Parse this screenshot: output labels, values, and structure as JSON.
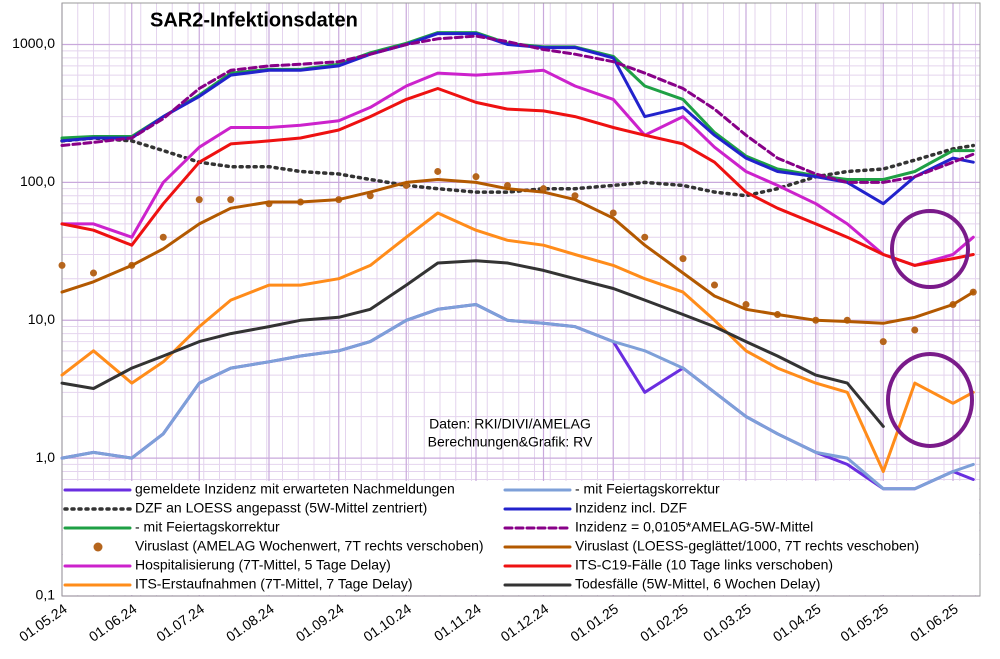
{
  "chart_data": {
    "type": "line",
    "title": "SAR2-Infektionsdaten",
    "annotations": [
      "Daten: RKI/DIVI/AMELAG",
      "Berechnungen&Grafik: RV"
    ],
    "log_scale": true,
    "grid": true,
    "ylim": [
      0.1,
      2000
    ],
    "yticks": [
      {
        "value": 0.1,
        "label": "0,1"
      },
      {
        "value": 1,
        "label": "1,0"
      },
      {
        "value": 10,
        "label": "10,0"
      },
      {
        "value": 100,
        "label": "100,0"
      },
      {
        "value": 1000,
        "label": "1000,0"
      }
    ],
    "xlim": [
      "2024-05-01",
      "2025-06-13"
    ],
    "xticks": [
      {
        "value": "2024-05-01",
        "label": "01.05.24"
      },
      {
        "value": "2024-06-01",
        "label": "01.06.24"
      },
      {
        "value": "2024-07-01",
        "label": "01.07.24"
      },
      {
        "value": "2024-08-01",
        "label": "01.08.24"
      },
      {
        "value": "2024-09-01",
        "label": "01.09.24"
      },
      {
        "value": "2024-10-01",
        "label": "01.10.24"
      },
      {
        "value": "2024-11-01",
        "label": "01.11.24"
      },
      {
        "value": "2024-12-01",
        "label": "01.12.24"
      },
      {
        "value": "2025-01-01",
        "label": "01.01.25"
      },
      {
        "value": "2025-02-01",
        "label": "01.02.25"
      },
      {
        "value": "2025-03-01",
        "label": "01.03.25"
      },
      {
        "value": "2025-04-01",
        "label": "01.04.25"
      },
      {
        "value": "2025-05-01",
        "label": "01.05.25"
      },
      {
        "value": "2025-06-01",
        "label": "01.06.25"
      }
    ],
    "x": [
      "2024-05-01",
      "2024-05-15",
      "2024-06-01",
      "2024-06-15",
      "2024-07-01",
      "2024-07-15",
      "2024-08-01",
      "2024-08-15",
      "2024-09-01",
      "2024-09-15",
      "2024-10-01",
      "2024-10-15",
      "2024-11-01",
      "2024-11-15",
      "2024-12-01",
      "2024-12-15",
      "2025-01-01",
      "2025-01-15",
      "2025-02-01",
      "2025-02-15",
      "2025-03-01",
      "2025-03-15",
      "2025-04-01",
      "2025-04-15",
      "2025-05-01",
      "2025-05-15",
      "2025-06-01",
      "2025-06-10"
    ],
    "series": [
      {
        "name": "gemeldete Inzidenz mit erwarteten Nachmeldungen",
        "color": "#6a2ee0",
        "style": "solid",
        "values": [
          1.0,
          1.1,
          1.0,
          1.5,
          3.5,
          4.5,
          5,
          5.5,
          6,
          7,
          10,
          12,
          13,
          10,
          9.5,
          9,
          7,
          3.0,
          4.5,
          3,
          2,
          1.5,
          1.1,
          0.9,
          0.6,
          0.6,
          0.8,
          0.7
        ]
      },
      {
        "name": "DZF an LOESS angepasst (5W-Mittel zentriert)",
        "color": "#333333",
        "style": "dotted",
        "values": [
          200,
          210,
          200,
          170,
          140,
          130,
          130,
          120,
          115,
          105,
          95,
          90,
          85,
          85,
          90,
          90,
          95,
          100,
          95,
          85,
          80,
          90,
          110,
          120,
          125,
          145,
          175,
          185
        ]
      },
      {
        "name": "- mit Feiertagskorrektur",
        "color": "#1fa045",
        "style": "solid",
        "values": [
          210,
          215,
          215,
          300,
          430,
          620,
          660,
          660,
          720,
          870,
          1020,
          1220,
          1220,
          1020,
          960,
          960,
          820,
          500,
          400,
          230,
          155,
          125,
          112,
          105,
          105,
          120,
          170,
          170
        ]
      },
      {
        "name": "Viruslast (AMELAG Wochenwert, 7T rechts verschoben)",
        "color": "#b5651d",
        "style": "dots",
        "values": [
          25,
          22,
          25,
          40,
          75,
          75,
          70,
          72,
          75,
          80,
          95,
          120,
          110,
          95,
          90,
          80,
          60,
          40,
          28,
          18,
          13,
          11,
          10,
          10,
          7,
          8.5,
          13,
          16
        ]
      },
      {
        "name": "Hospitalisierung (7T-Mittel, 5 Tage Delay)",
        "color": "#cc22cc",
        "style": "solid",
        "values": [
          50,
          50,
          40,
          100,
          180,
          250,
          250,
          260,
          280,
          350,
          500,
          620,
          600,
          620,
          650,
          500,
          400,
          220,
          300,
          180,
          120,
          95,
          70,
          50,
          30,
          25,
          30,
          40
        ]
      },
      {
        "name": "ITS-Erstaufnahmen (7T-Mittel, 7 Tage Delay)",
        "color": "#ff8c1a",
        "style": "solid",
        "values": [
          4,
          6,
          3.5,
          5,
          9,
          14,
          18,
          18,
          20,
          25,
          40,
          60,
          45,
          38,
          35,
          30,
          25,
          20,
          16,
          10,
          6,
          4.5,
          3.5,
          3,
          0.8,
          3.5,
          2.5,
          3
        ]
      },
      {
        "name": "- mit Feiertagskorrektur",
        "color": "#7ea0d8",
        "style": "solid",
        "values": [
          1.0,
          1.1,
          1.0,
          1.5,
          3.5,
          4.5,
          5,
          5.5,
          6,
          7,
          10,
          12,
          13,
          10,
          9.5,
          9,
          7,
          6,
          4.5,
          3,
          2,
          1.5,
          1.1,
          1.0,
          0.6,
          0.6,
          0.8,
          0.9
        ]
      },
      {
        "name": "Inzidenz incl. DZF",
        "color": "#2222cc",
        "style": "solid",
        "values": [
          200,
          210,
          210,
          300,
          420,
          600,
          650,
          650,
          700,
          850,
          1000,
          1200,
          1200,
          1000,
          950,
          950,
          800,
          300,
          350,
          220,
          150,
          120,
          110,
          100,
          70,
          110,
          150,
          140
        ]
      },
      {
        "name": "Inzidenz = 0,0105*AMELAG-5W-Mittel",
        "color": "#880088",
        "style": "dashed",
        "values": [
          185,
          195,
          210,
          290,
          480,
          650,
          700,
          720,
          750,
          850,
          1000,
          1100,
          1150,
          1050,
          920,
          850,
          750,
          620,
          480,
          340,
          220,
          150,
          115,
          100,
          100,
          110,
          140,
          160
        ]
      },
      {
        "name": "Viruslast (LOESS-geglättet/1000, 7T rechts veschoben)",
        "color": "#b35900",
        "style": "solid",
        "values": [
          16,
          19,
          25,
          33,
          50,
          65,
          72,
          72,
          75,
          85,
          100,
          105,
          100,
          90,
          85,
          75,
          55,
          35,
          22,
          15,
          12,
          11,
          10,
          9.8,
          9.5,
          10.5,
          13,
          16
        ]
      },
      {
        "name": "ITS-C19-Fälle (10 Tage links verschoben)",
        "color": "#ee1111",
        "style": "solid",
        "values": [
          50,
          45,
          35,
          70,
          140,
          190,
          200,
          210,
          240,
          300,
          400,
          480,
          380,
          340,
          330,
          300,
          250,
          220,
          190,
          140,
          85,
          65,
          50,
          40,
          30,
          25,
          28,
          30
        ]
      },
      {
        "name": "Todesfälle (5W-Mittel, 6 Wochen Delay)",
        "color": "#333333",
        "style": "solid",
        "values": [
          3.5,
          3.2,
          4.5,
          5.5,
          7,
          8,
          9,
          10,
          10.5,
          12,
          18,
          26,
          27,
          26,
          23,
          20,
          17,
          14,
          11,
          9,
          7,
          5.5,
          4,
          3.5,
          1.7,
          null,
          null,
          null
        ]
      }
    ]
  }
}
